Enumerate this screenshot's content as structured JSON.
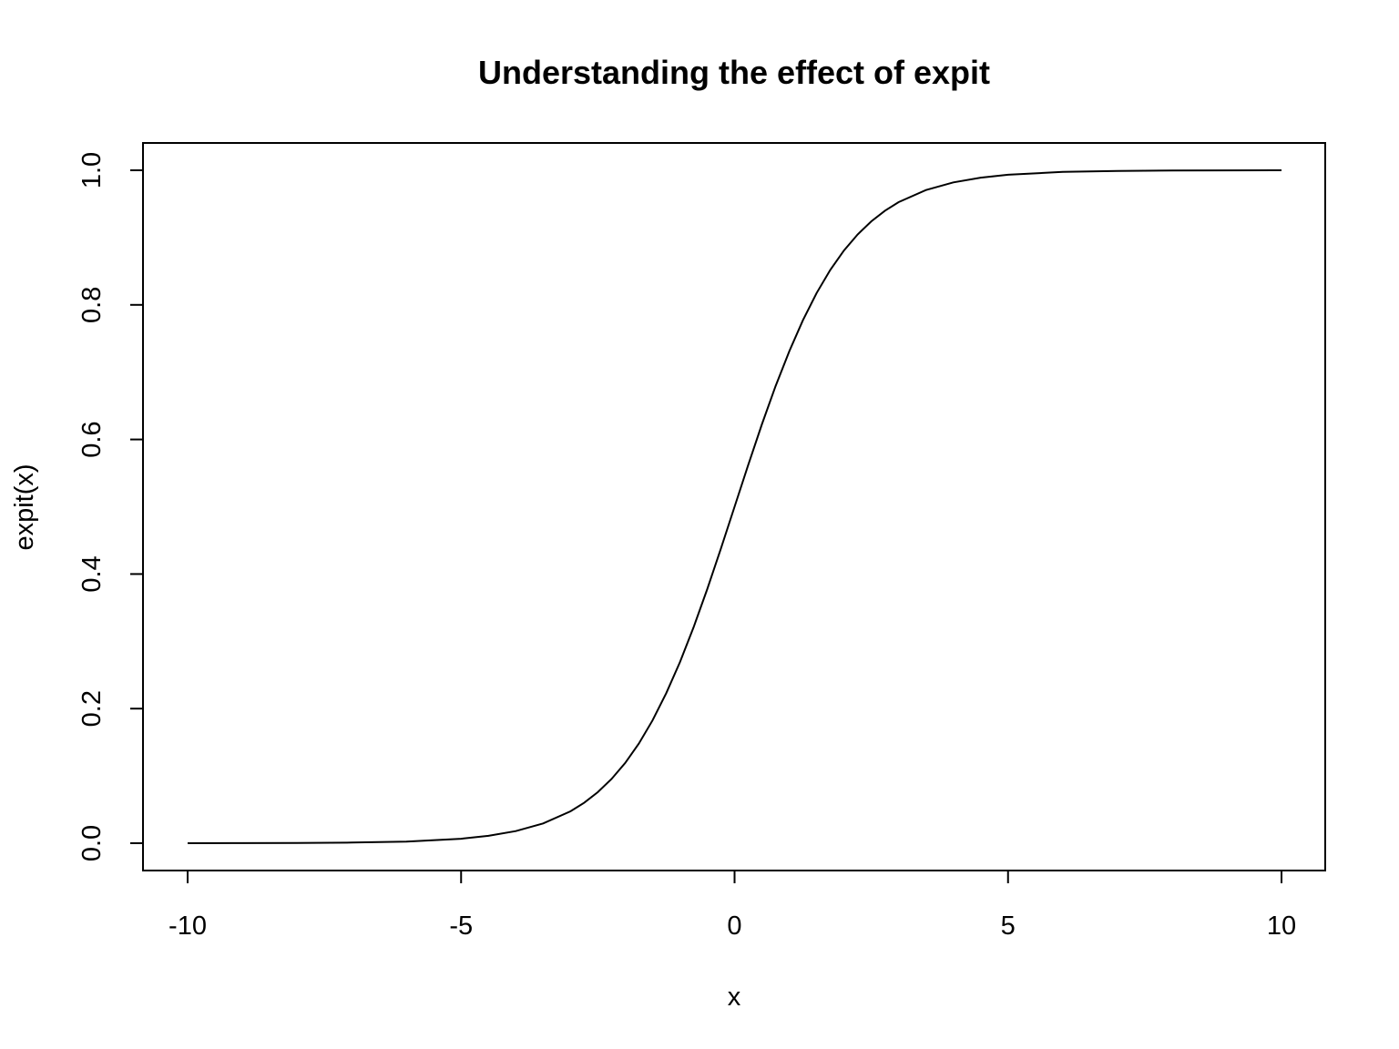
{
  "chart_data": {
    "type": "line",
    "title": "Understanding the effect of expit",
    "xlabel": "x",
    "ylabel": "expit(x)",
    "xlim": [
      -10,
      10
    ],
    "ylim": [
      0,
      1
    ],
    "x_ticks": [
      -10,
      -5,
      0,
      5,
      10
    ],
    "x_tick_labels": [
      "-10",
      "-5",
      "0",
      "5",
      "10"
    ],
    "y_ticks": [
      0,
      0.2,
      0.4,
      0.6,
      0.8,
      1.0
    ],
    "y_tick_labels": [
      "0.0",
      "0.2",
      "0.4",
      "0.6",
      "0.8",
      "1.0"
    ],
    "grid": false,
    "series": [
      {
        "color": "#000000",
        "x": [
          -10,
          -9,
          -8,
          -7,
          -6,
          -5,
          -4.5,
          -4,
          -3.5,
          -3,
          -2.75,
          -2.5,
          -2.25,
          -2,
          -1.75,
          -1.5,
          -1.25,
          -1,
          -0.75,
          -0.5,
          -0.25,
          0,
          0.25,
          0.5,
          0.75,
          1,
          1.25,
          1.5,
          1.75,
          2,
          2.25,
          2.5,
          2.75,
          3,
          3.5,
          4,
          4.5,
          5,
          6,
          7,
          8,
          9,
          10
        ],
        "y": [
          4.54e-05,
          0.0001234,
          0.0003354,
          0.0009111,
          0.0024726,
          0.0066929,
          0.0109869,
          0.0179862,
          0.0293122,
          0.0474259,
          0.0600866,
          0.0758582,
          0.0953495,
          0.1192029,
          0.1480472,
          0.1824255,
          0.2227001,
          0.2689414,
          0.3208213,
          0.3775407,
          0.4378235,
          0.5,
          0.5621765,
          0.6224593,
          0.6791787,
          0.7310586,
          0.7772999,
          0.8175745,
          0.8519528,
          0.8807971,
          0.9046505,
          0.9241418,
          0.9399134,
          0.9525741,
          0.9706878,
          0.9820138,
          0.9890131,
          0.9933071,
          0.9975274,
          0.9990889,
          0.9996646,
          0.9998766,
          0.9999546
        ]
      }
    ]
  }
}
